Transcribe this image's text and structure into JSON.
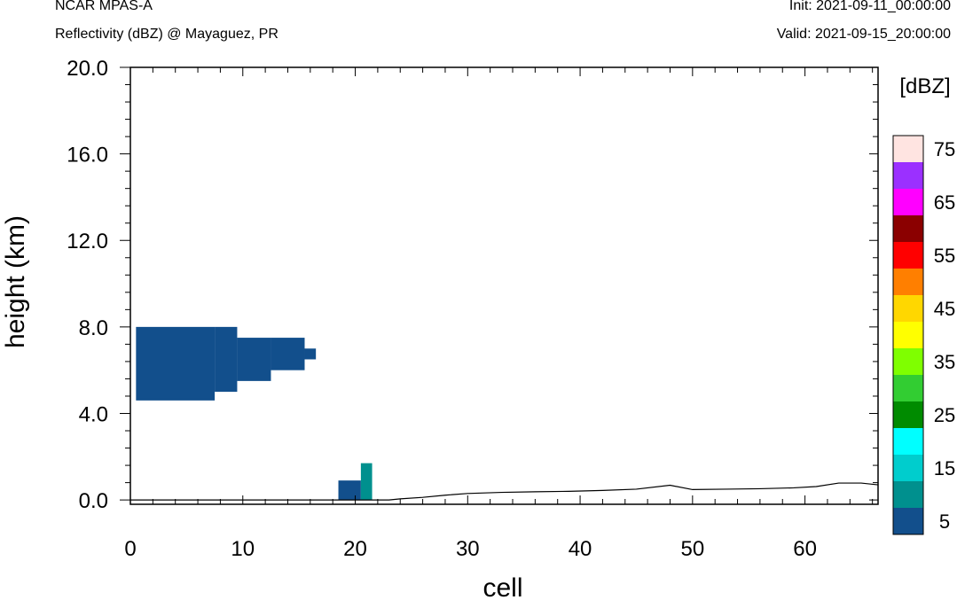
{
  "header": {
    "left_line1": "NCAR MPAS-A",
    "left_line2": "Reflectivity (dBZ) @ Mayaguez, PR",
    "right_line1": "Init: 2021-09-11_00:00:00",
    "right_line2": "Valid: 2021-09-15_20:00:00"
  },
  "chart_data": {
    "type": "heatmap",
    "title": "Reflectivity (dBZ) @ Mayaguez, PR",
    "xlabel": "cell",
    "ylabel": "height (km)",
    "xlim": [
      0,
      66.5
    ],
    "ylim": [
      -0.2,
      20.0
    ],
    "x_ticks": [
      0,
      10,
      20,
      30,
      40,
      50,
      60
    ],
    "x_tick_labels": [
      "0",
      "10",
      "20",
      "30",
      "40",
      "50",
      "60"
    ],
    "y_ticks": [
      0,
      4,
      8,
      12,
      16,
      20
    ],
    "y_tick_labels": [
      "0.0",
      "4.0",
      "8.0",
      "12.0",
      "16.0",
      "20.0"
    ],
    "colorbar": {
      "units_label": "[dBZ]",
      "levels": [
        5,
        10,
        15,
        20,
        25,
        30,
        35,
        40,
        45,
        50,
        55,
        60,
        65,
        70,
        75
      ],
      "colors": [
        "#124F8C",
        "#00908E",
        "#00CDCD",
        "#00FFFF",
        "#008B00",
        "#32CD32",
        "#7FFF00",
        "#FFFF00",
        "#FFD700",
        "#FF7F00",
        "#FF0000",
        "#8B0000",
        "#FF00FF",
        "#9B30FF",
        "#FFE4E1"
      ],
      "tick_labels": [
        "5",
        "15",
        "25",
        "35",
        "45",
        "55",
        "65",
        "75"
      ]
    },
    "cells": [
      {
        "x0": 0.5,
        "x1": 7.5,
        "y0": 4.6,
        "y1": 8.0,
        "dbz": 5
      },
      {
        "x0": 7.5,
        "x1": 9.5,
        "y0": 5.0,
        "y1": 8.0,
        "dbz": 5
      },
      {
        "x0": 9.5,
        "x1": 12.5,
        "y0": 5.5,
        "y1": 7.5,
        "dbz": 5
      },
      {
        "x0": 12.5,
        "x1": 15.5,
        "y0": 6.0,
        "y1": 7.5,
        "dbz": 5
      },
      {
        "x0": 15.5,
        "x1": 16.5,
        "y0": 6.5,
        "y1": 7.0,
        "dbz": 5
      },
      {
        "x0": 18.5,
        "x1": 20.5,
        "y0": 0.0,
        "y1": 0.9,
        "dbz": 5
      },
      {
        "x0": 20.5,
        "x1": 21.5,
        "y0": 0.0,
        "y1": 1.7,
        "dbz": 10
      }
    ],
    "terrain": {
      "x": [
        0,
        23,
        24,
        26,
        28,
        30,
        33,
        36,
        39,
        42,
        45,
        48,
        50,
        53,
        56,
        59,
        61,
        63,
        65,
        66.5
      ],
      "y": [
        0.0,
        0.0,
        0.05,
        0.12,
        0.22,
        0.3,
        0.35,
        0.38,
        0.4,
        0.44,
        0.5,
        0.68,
        0.48,
        0.5,
        0.52,
        0.56,
        0.62,
        0.78,
        0.78,
        0.7
      ]
    }
  }
}
